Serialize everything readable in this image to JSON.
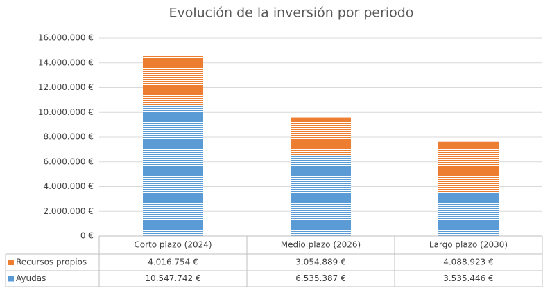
{
  "chart_data": {
    "type": "stacked_bar",
    "title": "Evolución de la inversión por periodo",
    "categories": [
      "Corto plazo (2024)",
      "Medio plazo (2026)",
      "Largo plazo (2030)"
    ],
    "series": [
      {
        "name": "Ayudas",
        "color": "#5b9bd5",
        "values": [
          10547742,
          6535387,
          3535446
        ],
        "value_labels": [
          "10.547.742 €",
          "6.535.387 €",
          "3.535.446 €"
        ]
      },
      {
        "name": "Recursos propios",
        "color": "#ed7d31",
        "values": [
          4016754,
          3054889,
          4088923
        ],
        "value_labels": [
          "4.016.754 €",
          "3.054.889 €",
          "4.088.923 €"
        ]
      }
    ],
    "ylim": [
      0,
      16000000
    ],
    "yticks": [
      {
        "value": 0,
        "label": "0 €"
      },
      {
        "value": 2000000,
        "label": "2.000.000 €"
      },
      {
        "value": 4000000,
        "label": "4.000.000 €"
      },
      {
        "value": 6000000,
        "label": "6.000.000 €"
      },
      {
        "value": 8000000,
        "label": "8.000.000 €"
      },
      {
        "value": 10000000,
        "label": "10.000.000 €"
      },
      {
        "value": 12000000,
        "label": "12.000.000 €"
      },
      {
        "value": 14000000,
        "label": "14.000.000 €"
      },
      {
        "value": 16000000,
        "label": "16.000.000 €"
      }
    ],
    "grid": true
  }
}
